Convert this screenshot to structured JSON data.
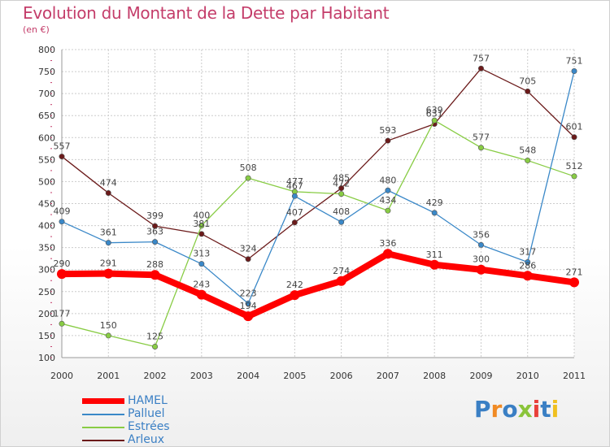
{
  "title": "Evolution du Montant de la Dette par Habitant",
  "subtitle": "(en €)",
  "logo": {
    "text": "Proxiti",
    "colors": [
      "#3a7fc4",
      "#f08a24",
      "#3a7fc4",
      "#8ac43a",
      "#e8403a",
      "#3a7fc4",
      "#f0c020"
    ]
  },
  "chart_data": {
    "type": "line",
    "x": [
      "2000",
      "2001",
      "2002",
      "2003",
      "2004",
      "2005",
      "2006",
      "2007",
      "2008",
      "2009",
      "2010",
      "2011"
    ],
    "ylim": [
      100,
      800
    ],
    "yticks": [
      100,
      150,
      200,
      250,
      300,
      350,
      400,
      450,
      500,
      550,
      600,
      650,
      700,
      750,
      800
    ],
    "grid": true,
    "legend_position": "bottom-left",
    "series": [
      {
        "name": "HAMEL",
        "color": "#ff0000",
        "values": [
          290,
          291,
          288,
          243,
          194,
          242,
          274,
          336,
          311,
          300,
          286,
          271
        ]
      },
      {
        "name": "Palluel",
        "color": "#3a88c8",
        "values": [
          409,
          361,
          363,
          313,
          223,
          467,
          408,
          480,
          429,
          356,
          317,
          751
        ]
      },
      {
        "name": "Estrées",
        "color": "#88cc44",
        "values": [
          177,
          150,
          125,
          400,
          508,
          477,
          472,
          434,
          639,
          577,
          548,
          512
        ]
      },
      {
        "name": "Arleux",
        "color": "#6b1a1a",
        "values": [
          557,
          474,
          399,
          381,
          324,
          407,
          485,
          593,
          631,
          757,
          705,
          601
        ]
      }
    ]
  }
}
